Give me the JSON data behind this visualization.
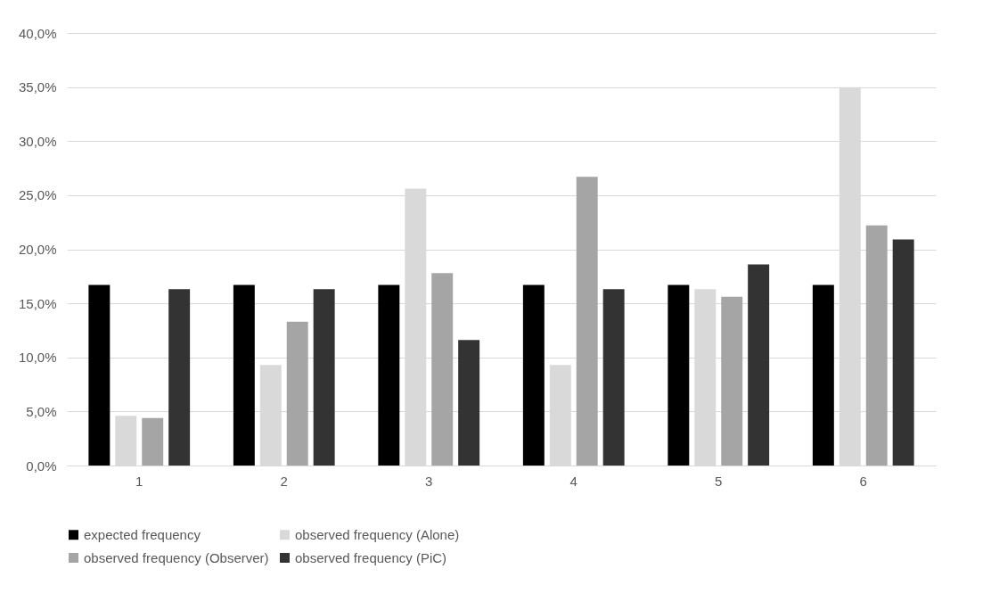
{
  "chart_data": {
    "type": "bar",
    "categories": [
      "1",
      "2",
      "3",
      "4",
      "5",
      "6"
    ],
    "series": [
      {
        "name": "expected frequency",
        "color": "#000000",
        "values": [
          16.7,
          16.7,
          16.7,
          16.7,
          16.7,
          16.7
        ]
      },
      {
        "name": "observed frequency (Alone)",
        "color": "#d9d9d9",
        "values": [
          4.6,
          9.3,
          25.6,
          9.3,
          16.3,
          35.0
        ]
      },
      {
        "name": "observed frequency (Observer)",
        "color": "#a5a5a5",
        "values": [
          4.4,
          13.3,
          17.8,
          26.7,
          15.6,
          22.2
        ]
      },
      {
        "name": "observed frequency (PiC)",
        "color": "#333333",
        "values": [
          16.3,
          16.3,
          11.6,
          16.3,
          18.6,
          20.9
        ]
      }
    ],
    "ylim": [
      0,
      40
    ],
    "yticks": [
      {
        "value": 0,
        "label": "0,0%"
      },
      {
        "value": 5,
        "label": "5,0%"
      },
      {
        "value": 10,
        "label": "10,0%"
      },
      {
        "value": 15,
        "label": "15,0%"
      },
      {
        "value": 20,
        "label": "20,0%"
      },
      {
        "value": 25,
        "label": "25,0%"
      },
      {
        "value": 30,
        "label": "30,0%"
      },
      {
        "value": 35,
        "label": "35,0%"
      },
      {
        "value": 40,
        "label": "40,0%"
      }
    ],
    "grid": "y",
    "legend": "bottom"
  }
}
